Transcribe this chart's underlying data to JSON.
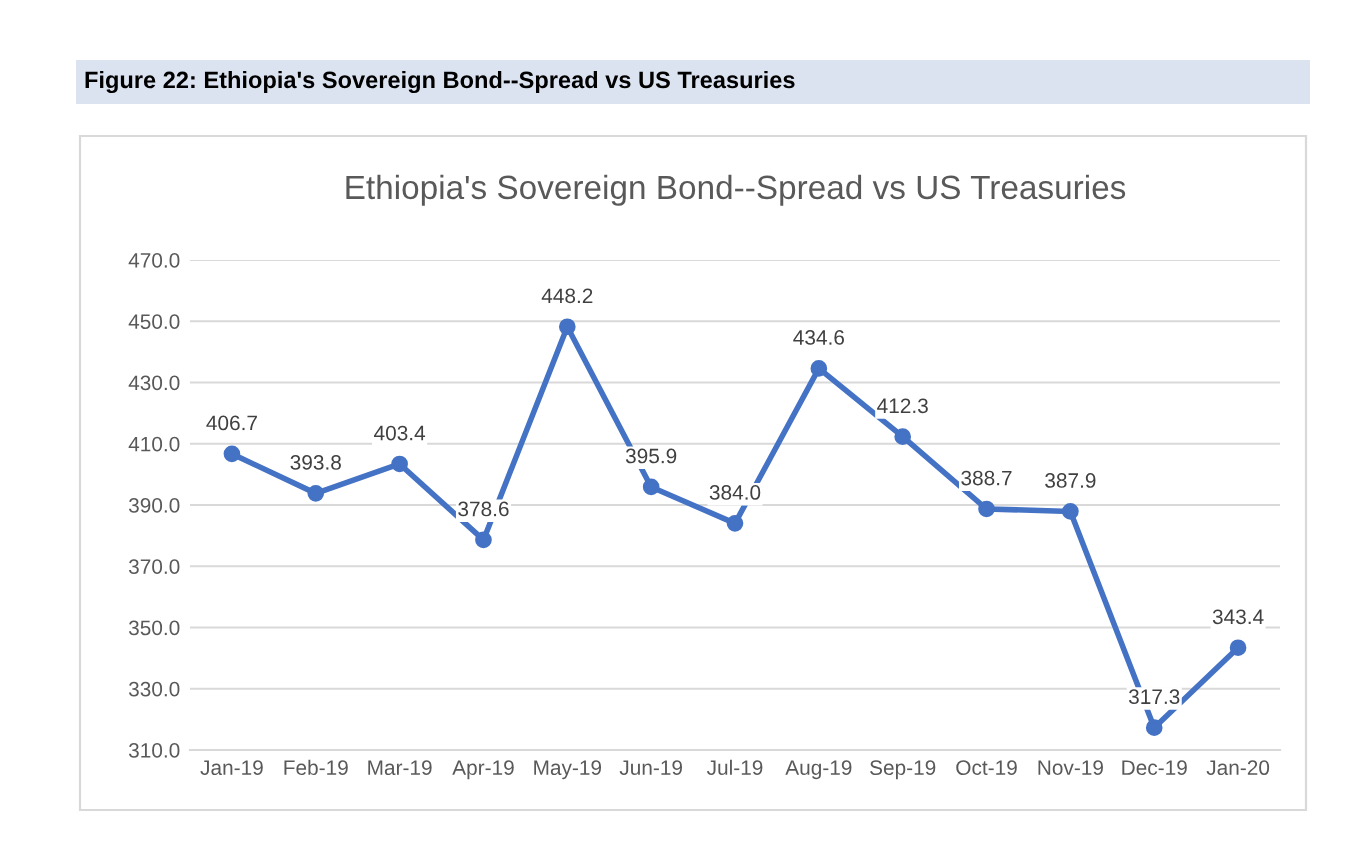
{
  "chart_data": {
    "type": "line",
    "title": "Ethiopia's Sovereign Bond--Spread vs US Treasuries",
    "annotations": [
      "Figure 22: Ethiopia's Sovereign Bond--Spread vs US Treasuries"
    ],
    "categories": [
      "Jan-19",
      "Feb-19",
      "Mar-19",
      "Apr-19",
      "May-19",
      "Jun-19",
      "Jul-19",
      "Aug-19",
      "Sep-19",
      "Oct-19",
      "Nov-19",
      "Dec-19",
      "Jan-20"
    ],
    "series": [
      {
        "color": "#4472c4",
        "values": [
          406.7,
          393.8,
          403.4,
          378.6,
          448.2,
          395.9,
          384.0,
          434.6,
          412.3,
          388.7,
          387.9,
          317.3,
          343.4
        ],
        "value_labels": [
          "406.7",
          "393.8",
          "403.4",
          "378.6",
          "448.2",
          "395.9",
          "384.0",
          "434.6",
          "412.3",
          "388.7",
          "387.9",
          "317.3",
          "343.4"
        ]
      }
    ],
    "ylim": [
      310,
      470
    ],
    "yticks": [
      {
        "value": 310,
        "label": "310.0"
      },
      {
        "value": 330,
        "label": "330.0"
      },
      {
        "value": 350,
        "label": "350.0"
      },
      {
        "value": 370,
        "label": "370.0"
      },
      {
        "value": 390,
        "label": "390.0"
      },
      {
        "value": 410,
        "label": "410.0"
      },
      {
        "value": 430,
        "label": "430.0"
      },
      {
        "value": 450,
        "label": "450.0"
      },
      {
        "value": 470,
        "label": "470.0"
      }
    ],
    "grid": "y",
    "marker": "circle",
    "line_style": "solid"
  }
}
